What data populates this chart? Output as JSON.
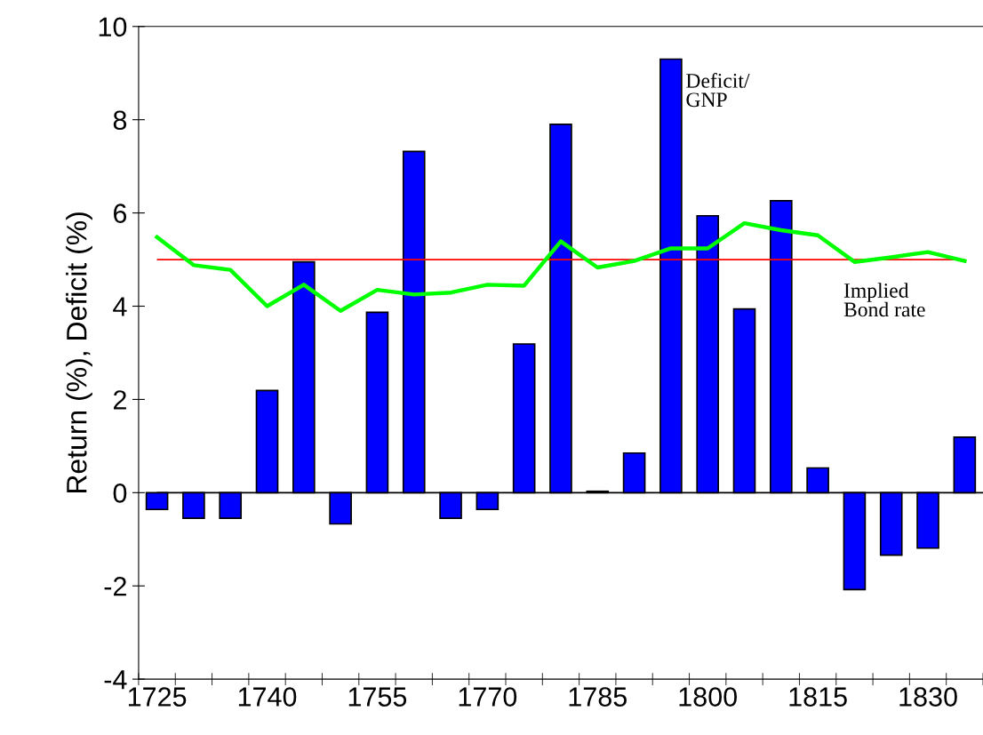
{
  "chart_data": {
    "type": "bar",
    "ylabel": "Return (%), Deficit (%)",
    "categories": [
      "1725",
      null,
      null,
      "1740",
      null,
      null,
      "1755",
      null,
      null,
      "1770",
      null,
      null,
      "1785",
      null,
      null,
      "1800",
      null,
      null,
      "1815",
      null,
      null,
      "1830",
      null
    ],
    "series": [
      {
        "name": "Deficit/\nGNP",
        "color": "#0000ff",
        "values": [
          -0.36,
          -0.55,
          -0.55,
          2.19,
          4.95,
          -0.67,
          3.87,
          7.32,
          -0.55,
          -0.36,
          3.19,
          7.9,
          0.03,
          0.85,
          9.3,
          5.94,
          3.94,
          6.26,
          0.53,
          -2.08,
          -1.34,
          -1.19,
          1.19
        ]
      },
      {
        "name": "Implied\nBond rate",
        "type": "line",
        "color": "#00ff00",
        "values": [
          5.48,
          4.88,
          4.78,
          4.0,
          4.46,
          3.9,
          4.35,
          4.25,
          4.29,
          4.46,
          4.44,
          5.39,
          4.83,
          4.97,
          5.24,
          5.24,
          5.78,
          5.63,
          5.52,
          4.95,
          5.05,
          5.16,
          4.97
        ]
      }
    ],
    "ylim": [
      -4,
      10
    ],
    "yticks": [
      -4,
      -2,
      0,
      2,
      4,
      6,
      8,
      10
    ],
    "ref_lines": [
      {
        "axis": "y",
        "value": 5,
        "color": "#ff0000",
        "line_style": "solid"
      },
      {
        "axis": "y",
        "value": 0,
        "color": "#000000",
        "line_style": "solid"
      }
    ],
    "grid": false,
    "legend": false,
    "marker": "none"
  }
}
